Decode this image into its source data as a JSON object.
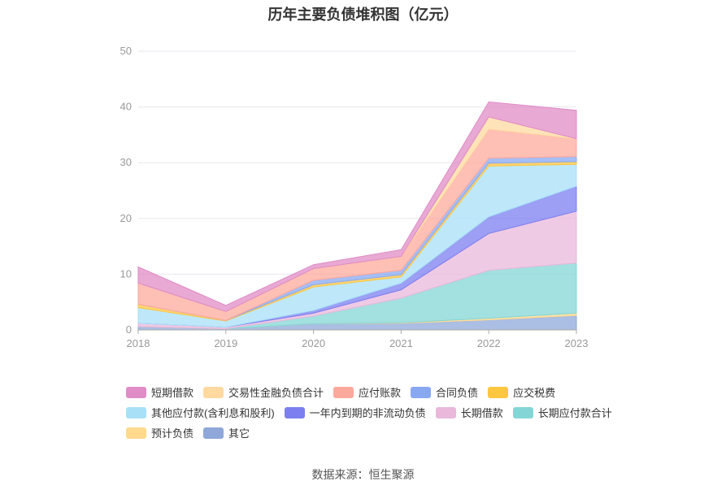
{
  "chart_data": {
    "type": "area",
    "stacked": true,
    "title": "历年主要负债堆积图（亿元）",
    "x": [
      "2018",
      "2019",
      "2020",
      "2021",
      "2022",
      "2023"
    ],
    "ylim": [
      0,
      50
    ],
    "yticks": [
      0,
      10,
      20,
      30,
      40,
      50
    ],
    "grid": true,
    "legend_position": "bottom",
    "series": [
      {
        "name": "其它",
        "color": "#8fa8d9",
        "values": [
          0.6,
          0.2,
          1.1,
          1.2,
          1.8,
          2.6
        ]
      },
      {
        "name": "预计负债",
        "color": "#ffd98e",
        "values": [
          0,
          0,
          0,
          0.1,
          0.3,
          0.4
        ]
      },
      {
        "name": "长期应付款合计",
        "color": "#84d6d6",
        "values": [
          0,
          0,
          1.4,
          4.4,
          8.6,
          9.0
        ]
      },
      {
        "name": "长期借款",
        "color": "#e9b8db",
        "values": [
          0.6,
          0.3,
          0.5,
          1.5,
          6.6,
          9.3
        ]
      },
      {
        "name": "一年内到期的非流动负债",
        "color": "#7b7ff0",
        "values": [
          0,
          0,
          0.5,
          1.2,
          3.0,
          4.5
        ]
      },
      {
        "name": "其他应付款(含利息和股利)",
        "color": "#a8e0f8",
        "values": [
          2.8,
          1.1,
          4.2,
          1.1,
          9.1,
          3.9
        ]
      },
      {
        "name": "应交税费",
        "color": "#ffc640",
        "values": [
          0.6,
          0.1,
          0.4,
          0.4,
          0.5,
          0.5
        ]
      },
      {
        "name": "合同负债",
        "color": "#88a8f2",
        "values": [
          0,
          0,
          0.8,
          0.8,
          0.9,
          0.9
        ]
      },
      {
        "name": "应付账款",
        "color": "#fda99c",
        "values": [
          3.8,
          1.6,
          2.1,
          2.5,
          5.2,
          3.2
        ]
      },
      {
        "name": "交易性金融负债合计",
        "color": "#ffd9a0",
        "values": [
          0,
          0,
          0,
          0,
          2.2,
          0
        ]
      },
      {
        "name": "短期借款",
        "color": "#e08cc6",
        "values": [
          2.9,
          1.1,
          0.7,
          1.2,
          2.7,
          5.1
        ]
      }
    ],
    "legend_order": [
      "短期借款",
      "交易性金融负债合计",
      "应付账款",
      "合同负债",
      "应交税费",
      "其他应付款(含利息和股利)",
      "一年内到期的非流动负债",
      "长期借款",
      "长期应付款合计",
      "预计负债",
      "其它"
    ]
  },
  "source": "数据来源：恒生聚源"
}
